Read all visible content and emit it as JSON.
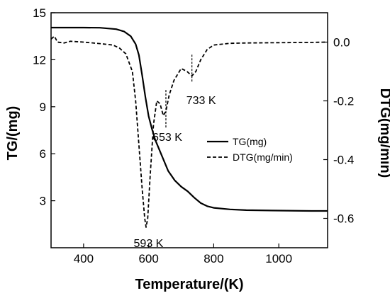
{
  "chart_data": {
    "type": "line",
    "xlabel": "Temperature/(K)",
    "ylabel_left": "TG/(mg)",
    "ylabel_right": "DTG(mg/min)",
    "xlim": [
      300,
      1150
    ],
    "ylim_left": [
      0,
      15
    ],
    "ylim_right": [
      -0.7,
      0.1
    ],
    "xticks": [
      400,
      600,
      800,
      1000
    ],
    "yticks_left": [
      3,
      6,
      9,
      12,
      15
    ],
    "yticks_right": [
      -0.6,
      -0.4,
      -0.2,
      0.0
    ],
    "yticklabels_right": [
      "-0.6",
      "-0.4",
      "-0.2",
      "0.0"
    ],
    "legend": {
      "position": "center-right"
    },
    "series": [
      {
        "name": "TG(mg)",
        "axis": "left",
        "style": "solid",
        "points": [
          [
            300,
            14.05
          ],
          [
            400,
            14.05
          ],
          [
            450,
            14.04
          ],
          [
            500,
            13.95
          ],
          [
            525,
            13.8
          ],
          [
            545,
            13.5
          ],
          [
            560,
            13.0
          ],
          [
            570,
            12.3
          ],
          [
            580,
            11.0
          ],
          [
            590,
            9.6
          ],
          [
            600,
            8.4
          ],
          [
            610,
            7.6
          ],
          [
            620,
            6.9
          ],
          [
            640,
            5.9
          ],
          [
            660,
            4.9
          ],
          [
            680,
            4.3
          ],
          [
            700,
            3.9
          ],
          [
            720,
            3.6
          ],
          [
            740,
            3.2
          ],
          [
            760,
            2.85
          ],
          [
            780,
            2.65
          ],
          [
            800,
            2.55
          ],
          [
            850,
            2.45
          ],
          [
            900,
            2.4
          ],
          [
            1000,
            2.37
          ],
          [
            1100,
            2.35
          ],
          [
            1150,
            2.35
          ]
        ]
      },
      {
        "name": "DTG(mg/min)",
        "axis": "right",
        "style": "dashed",
        "points": [
          [
            300,
            0.01
          ],
          [
            310,
            0.02
          ],
          [
            320,
            0.0
          ],
          [
            340,
            -0.003
          ],
          [
            360,
            0.003
          ],
          [
            400,
            0.0
          ],
          [
            450,
            -0.005
          ],
          [
            490,
            -0.01
          ],
          [
            510,
            -0.02
          ],
          [
            530,
            -0.04
          ],
          [
            550,
            -0.1
          ],
          [
            560,
            -0.2
          ],
          [
            570,
            -0.35
          ],
          [
            580,
            -0.5
          ],
          [
            588,
            -0.6
          ],
          [
            592,
            -0.63
          ],
          [
            597,
            -0.6
          ],
          [
            605,
            -0.45
          ],
          [
            615,
            -0.28
          ],
          [
            625,
            -0.2
          ],
          [
            635,
            -0.21
          ],
          [
            645,
            -0.25
          ],
          [
            653,
            -0.235
          ],
          [
            663,
            -0.18
          ],
          [
            678,
            -0.13
          ],
          [
            700,
            -0.09
          ],
          [
            718,
            -0.1
          ],
          [
            733,
            -0.115
          ],
          [
            745,
            -0.1
          ],
          [
            760,
            -0.06
          ],
          [
            780,
            -0.025
          ],
          [
            800,
            -0.01
          ],
          [
            850,
            -0.004
          ],
          [
            900,
            -0.003
          ],
          [
            1000,
            -0.002
          ],
          [
            1100,
            -0.001
          ],
          [
            1150,
            0.0
          ]
        ]
      }
    ],
    "annotations": [
      {
        "text": "593 K",
        "x": 593,
        "y": -0.63,
        "axis": "right"
      },
      {
        "text": "653 K",
        "x": 653,
        "y": -0.24,
        "axis": "right"
      },
      {
        "text": "733 K",
        "x": 733,
        "y": -0.115,
        "axis": "right"
      }
    ]
  }
}
